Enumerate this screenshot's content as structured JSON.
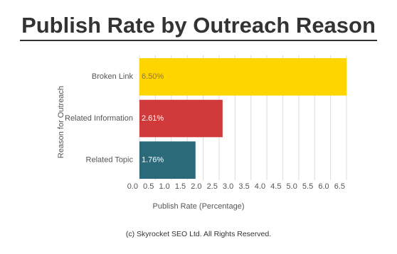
{
  "chart_data": {
    "type": "bar",
    "orientation": "horizontal",
    "title": "Publish Rate by Outreach Reason",
    "x_label": "Publish Rate (Percentage)",
    "y_label": "Reason for Outreach",
    "categories": [
      "Broken Link",
      "Related Information",
      "Related Topic"
    ],
    "values": [
      6.5,
      2.61,
      1.76
    ],
    "value_labels": [
      "6.50%",
      "2.61%",
      "1.76%"
    ],
    "colors": [
      "#ffd500",
      "#d13a3a",
      "#2b6a79"
    ],
    "xlim": [
      0,
      6.5
    ],
    "xticks": [
      {
        "value": 0,
        "label": "0.0"
      },
      0.5,
      {
        "value": 1,
        "label": "1.0"
      },
      1.5,
      {
        "value": 2,
        "label": "2.0"
      },
      2.5,
      {
        "value": 3,
        "label": "3.0"
      },
      3.5,
      {
        "value": 4,
        "label": "4.0"
      },
      4.5,
      {
        "value": 5,
        "label": "5.0"
      },
      5.5,
      {
        "value": 6,
        "label": "6.0"
      },
      6.5
    ],
    "grid": true,
    "footer": "(c) Skyrocket SEO Ltd. All Rights Reserved."
  }
}
